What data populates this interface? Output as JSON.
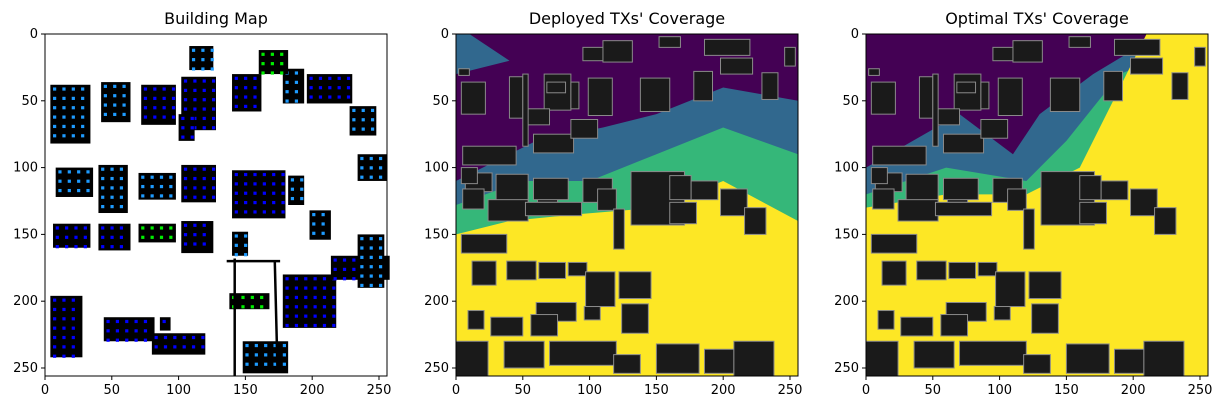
{
  "chart_data": [
    {
      "type": "heatmap",
      "title": "Building Map",
      "xlim": [
        0,
        256
      ],
      "ylim": [
        256,
        0
      ],
      "x_ticks": [
        0,
        50,
        100,
        150,
        200,
        250
      ],
      "y_ticks": [
        0,
        50,
        100,
        150,
        200,
        250
      ],
      "legend": "none",
      "colors": {
        "background": "#ffffff",
        "building": "#000000",
        "zone_a": "#0000ff",
        "zone_b": "#1e9bff",
        "zone_c": "#00ee00"
      }
    },
    {
      "type": "heatmap",
      "title": "Deployed TXs' Coverage",
      "xlim": [
        0,
        256
      ],
      "ylim": [
        256,
        0
      ],
      "x_ticks": [
        0,
        50,
        100,
        150,
        200,
        250
      ],
      "y_ticks": [
        0,
        50,
        100,
        150,
        200,
        250
      ],
      "legend": "none",
      "colors": {
        "none": "#440154",
        "low": "#31688e",
        "mid": "#35b779",
        "high": "#fde725",
        "building": "#1a1a1a"
      }
    },
    {
      "type": "heatmap",
      "title": "Optimal TXs' Coverage",
      "xlim": [
        0,
        256
      ],
      "ylim": [
        256,
        0
      ],
      "x_ticks": [
        0,
        50,
        100,
        150,
        200,
        250
      ],
      "y_ticks": [
        0,
        50,
        100,
        150,
        200,
        250
      ],
      "legend": "none",
      "colors": {
        "none": "#440154",
        "low": "#31688e",
        "mid": "#35b779",
        "high": "#fde725",
        "building": "#1a1a1a"
      }
    }
  ]
}
